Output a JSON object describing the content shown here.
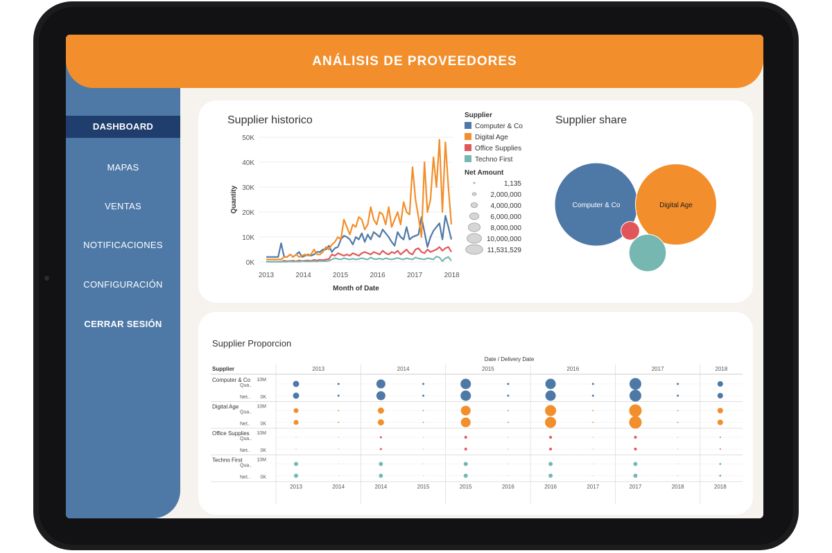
{
  "header": {
    "title": "ANÁLISIS DE PROVEEDORES"
  },
  "nav": {
    "items": [
      {
        "label": "DASHBOARD",
        "active": true
      },
      {
        "label": "MAPAS"
      },
      {
        "label": "VENTAS"
      },
      {
        "label": "NOTIFICACIONES"
      },
      {
        "label": "CONFIGURACIÓN"
      },
      {
        "label": "CERRAR SESIÓN",
        "bold": true
      }
    ]
  },
  "colors": {
    "header": "#f28e2b",
    "sidebar": "#4e79a7",
    "active_nav": "#1f3d6d",
    "computer_co": "#4e79a7",
    "digital_age": "#f28e2b",
    "office_supplies": "#e15759",
    "techno_first": "#76b7b2"
  },
  "chart_data": [
    {
      "type": "line",
      "title": "Supplier historico",
      "xlabel": "Month of Date",
      "ylabel": "Quantity",
      "x_ticks": [
        "2013",
        "2014",
        "2015",
        "2016",
        "2017",
        "2018"
      ],
      "y_ticks": [
        "0K",
        "10K",
        "20K",
        "30K",
        "40K",
        "50K"
      ],
      "ylim": [
        0,
        50000
      ],
      "x_range": [
        "2013-01",
        "2018-03"
      ],
      "legend_title": "Supplier",
      "legend_size_title": "Net Amount",
      "size_legend": [
        "1,135",
        "2,000,000",
        "4,000,000",
        "6,000,000",
        "8,000,000",
        "10,000,000",
        "11,531,529"
      ],
      "series": [
        {
          "name": "Computer & Co",
          "color": "#4e79a7",
          "values": [
            2000,
            2000,
            2000,
            2000,
            2000,
            7500,
            2000,
            2000,
            3000,
            2000,
            3000,
            4000,
            2000,
            2500,
            3000,
            2500,
            3000,
            4000,
            4000,
            5000,
            5000,
            6500,
            4000,
            5500,
            6000,
            9000,
            10500,
            10000,
            9000,
            7000,
            10000,
            9000,
            11500,
            8000,
            11000,
            9000,
            12000,
            11000,
            10000,
            13000,
            11500,
            10000,
            8000,
            6500,
            12000,
            10000,
            9000,
            14000,
            9000,
            10000,
            10500,
            11000,
            18000,
            12000,
            6000,
            10000,
            12500,
            14000,
            15500,
            9000,
            18500,
            14000,
            9000
          ]
        },
        {
          "name": "Digital Age",
          "color": "#f28e2b",
          "values": [
            1000,
            1000,
            1000,
            1000,
            1000,
            1000,
            2000,
            2000,
            3000,
            2000,
            3000,
            2000,
            2500,
            3000,
            2500,
            3000,
            5000,
            3000,
            3000,
            4000,
            6000,
            5000,
            7000,
            8000,
            10000,
            9000,
            17000,
            14000,
            11000,
            15000,
            14000,
            18000,
            17000,
            13000,
            15000,
            22000,
            17000,
            15000,
            20000,
            19000,
            15000,
            22000,
            14000,
            17000,
            20000,
            15000,
            24000,
            20000,
            19000,
            38000,
            25000,
            18000,
            10000,
            40000,
            20000,
            25000,
            42000,
            30000,
            49000,
            20000,
            48000,
            30000,
            15000
          ]
        },
        {
          "name": "Office Supplies",
          "color": "#e15759",
          "values": [
            100,
            100,
            100,
            100,
            100,
            100,
            500,
            300,
            400,
            500,
            300,
            600,
            400,
            500,
            600,
            400,
            800,
            600,
            900,
            700,
            1000,
            1200,
            3000,
            2500,
            3500,
            3000,
            2500,
            3000,
            2500,
            3500,
            3000,
            2500,
            3500,
            4000,
            3500,
            3000,
            4000,
            3500,
            3000,
            4500,
            3500,
            3000,
            4000,
            3500,
            4500,
            3000,
            4000,
            5000,
            3500,
            3000,
            5000,
            5500,
            4000,
            3500,
            5000,
            4000,
            4500,
            5000,
            6000,
            4500,
            5500,
            6000,
            4000
          ]
        },
        {
          "name": "Techno First",
          "color": "#76b7b2",
          "values": [
            100,
            100,
            100,
            100,
            100,
            100,
            100,
            100,
            200,
            100,
            200,
            100,
            300,
            200,
            200,
            200,
            300,
            200,
            400,
            300,
            300,
            500,
            1000,
            1500,
            1200,
            1000,
            1500,
            1200,
            1000,
            1300,
            1000,
            1200,
            1500,
            1200,
            1000,
            1800,
            1200,
            1100,
            1400,
            1000,
            1500,
            1200,
            1000,
            1300,
            1600,
            1200,
            1000,
            1500,
            1200,
            1000,
            1800,
            1400,
            1200,
            1000,
            1500,
            1300,
            1000,
            2200,
            1800,
            300,
            1500,
            2000,
            500
          ]
        }
      ]
    },
    {
      "type": "bubble",
      "title": "Supplier share",
      "bubbles": [
        {
          "name": "Computer & Co",
          "label": "Computer & Co",
          "color": "#4e79a7",
          "value": 100
        },
        {
          "name": "Digital Age",
          "label": "Digital Age",
          "color": "#f28e2b",
          "value": 95
        },
        {
          "name": "Office Supplies",
          "label": "",
          "color": "#e15759",
          "value": 5
        },
        {
          "name": "Techno First",
          "label": "",
          "color": "#76b7b2",
          "value": 20
        }
      ]
    },
    {
      "type": "scatter",
      "title": "Supplier Proporcion",
      "col_header": "Date / Delivery Date",
      "row_header": "Supplier",
      "years_top": [
        "2013",
        "2014",
        "2015",
        "2016",
        "2017",
        "2018"
      ],
      "years_bottom": [
        "2013",
        "2014",
        "2014",
        "2015",
        "2015",
        "2016",
        "2016",
        "2017",
        "2017",
        "2018",
        "2018"
      ],
      "measures": [
        "Qua..",
        "Net.."
      ],
      "suppliers": [
        {
          "name": "Computer & Co",
          "color": "#4e79a7",
          "tick_top": "10M",
          "tick_bottom": "0K",
          "top_sizes": [
            9,
            3,
            13,
            3,
            15,
            3,
            15,
            3,
            17,
            3,
            8
          ],
          "bottom_sizes": [
            9,
            3,
            13,
            3,
            15,
            3,
            15,
            3,
            17,
            3,
            8
          ]
        },
        {
          "name": "Digital Age",
          "color": "#f28e2b",
          "tick_top": "10M",
          "tick_bottom": "0K",
          "top_sizes": [
            7,
            2,
            9,
            2,
            14,
            2,
            16,
            2,
            18,
            2,
            8
          ],
          "bottom_sizes": [
            7,
            2,
            9,
            2,
            14,
            2,
            16,
            2,
            18,
            2,
            8
          ]
        },
        {
          "name": "Office Supplies",
          "color": "#e15759",
          "tick_top": "10M",
          "tick_bottom": "0K",
          "top_sizes": [
            1,
            1,
            3,
            1,
            4,
            1,
            4,
            1,
            4,
            1,
            2
          ],
          "bottom_sizes": [
            1,
            1,
            3,
            1,
            4,
            1,
            4,
            1,
            4,
            1,
            2
          ]
        },
        {
          "name": "Techno First",
          "color": "#76b7b2",
          "tick_top": "10M",
          "tick_bottom": "0K",
          "top_sizes": [
            6,
            1,
            6,
            1,
            6,
            1,
            6,
            1,
            6,
            1,
            3
          ],
          "bottom_sizes": [
            6,
            1,
            6,
            1,
            6,
            1,
            6,
            1,
            6,
            1,
            3
          ]
        }
      ]
    }
  ]
}
